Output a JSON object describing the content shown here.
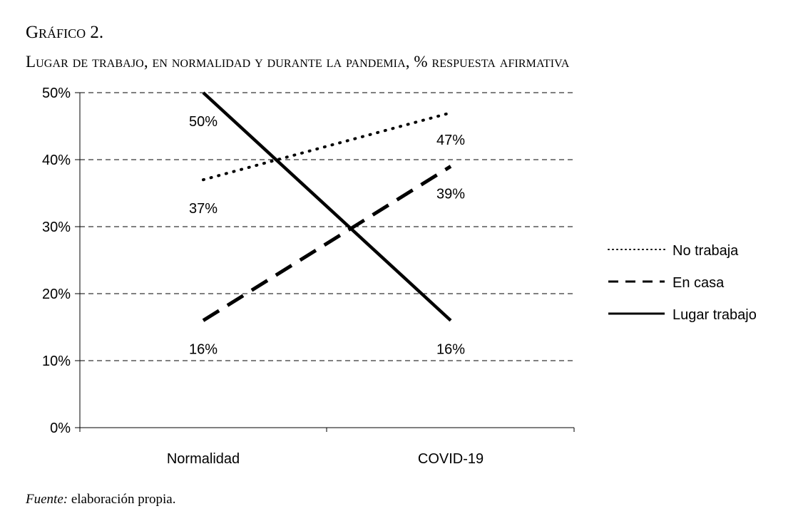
{
  "figure_label": "Gráfico 2.",
  "source": {
    "prefix": "Fuente:",
    "text": " elaboración propia."
  },
  "chart_data": {
    "type": "line",
    "title": "Lugar de trabajo, en normalidad y durante la pandemia, % respuesta afirmativa",
    "categories": [
      "Normalidad",
      "COVID-19"
    ],
    "ylim": [
      0,
      50
    ],
    "yticks": [
      0,
      10,
      20,
      30,
      40,
      50
    ],
    "ytick_labels": [
      "0%",
      "10%",
      "20%",
      "30%",
      "40%",
      "50%"
    ],
    "grid": "horizontal dashed",
    "legend_position": "right",
    "series": [
      {
        "name": "No trabaja",
        "style": "dotted",
        "values": [
          37,
          47
        ],
        "labels": [
          "37%",
          "47%"
        ]
      },
      {
        "name": "En casa",
        "style": "dashed",
        "values": [
          16,
          39
        ],
        "labels": [
          "16%",
          "39%"
        ]
      },
      {
        "name": "Lugar trabajo",
        "style": "solid",
        "values": [
          50,
          16
        ],
        "labels": [
          "50%",
          "16%"
        ]
      }
    ],
    "color": "#000000"
  }
}
